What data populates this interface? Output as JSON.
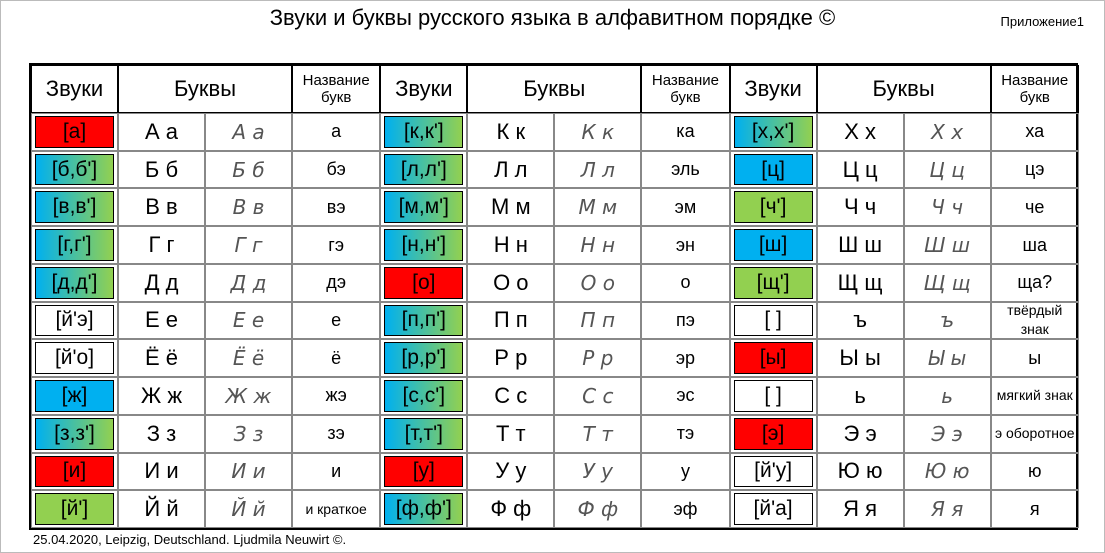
{
  "header": {
    "title": "Звуки и буквы русского языка в алфавитном порядке ©",
    "appendix": "Приложение1"
  },
  "table": {
    "columns": [
      "Звуки",
      "Буквы",
      "Название букв"
    ],
    "groups": [
      [
        {
          "sound": "[а]",
          "color": "#ff0000",
          "print": "А а",
          "italic": "А а",
          "name": "а"
        },
        {
          "sound": "[б,б']",
          "color": [
            "#00b0f0",
            "#92d050"
          ],
          "print": "Б б",
          "italic": "Б б",
          "name": "бэ"
        },
        {
          "sound": "[в,в']",
          "color": [
            "#00b0f0",
            "#92d050"
          ],
          "print": "В в",
          "italic": "В в",
          "name": "вэ"
        },
        {
          "sound": "[г,г']",
          "color": [
            "#00b0f0",
            "#92d050"
          ],
          "print": "Г г",
          "italic": "Г г",
          "name": "гэ"
        },
        {
          "sound": "[д,д']",
          "color": [
            "#00b0f0",
            "#92d050"
          ],
          "print": "Д д",
          "italic": "Д д",
          "name": "дэ"
        },
        {
          "sound": "[й'э]",
          "color": "#ffffff",
          "print": "Е е",
          "italic": "Е е",
          "name": "е"
        },
        {
          "sound": "[й'о]",
          "color": "#ffffff",
          "print": "Ё ё",
          "italic": "Ё ё",
          "name": "ё"
        },
        {
          "sound": "[ж]",
          "color": "#00b0f0",
          "print": "Ж ж",
          "italic": "Ж ж",
          "name": "жэ"
        },
        {
          "sound": "[з,з']",
          "color": [
            "#00b0f0",
            "#92d050"
          ],
          "print": "З з",
          "italic": "З з",
          "name": "зэ"
        },
        {
          "sound": "[и]",
          "color": "#ff0000",
          "print": "И и",
          "italic": "И и",
          "name": "и"
        },
        {
          "sound": "[й']",
          "color": "#92d050",
          "print": "Й й",
          "italic": "Й й",
          "name": "и краткое"
        }
      ],
      [
        {
          "sound": "[к,к']",
          "color": [
            "#00b0f0",
            "#92d050"
          ],
          "print": "К к",
          "italic": "К к",
          "name": "ка"
        },
        {
          "sound": "[л,л']",
          "color": [
            "#00b0f0",
            "#92d050"
          ],
          "print": "Л л",
          "italic": "Л л",
          "name": "эль"
        },
        {
          "sound": "[м,м']",
          "color": [
            "#00b0f0",
            "#92d050"
          ],
          "print": "М м",
          "italic": "М м",
          "name": "эм"
        },
        {
          "sound": "[н,н']",
          "color": [
            "#00b0f0",
            "#92d050"
          ],
          "print": "Н н",
          "italic": "Н н",
          "name": "эн"
        },
        {
          "sound": "[о]",
          "color": "#ff0000",
          "print": "О о",
          "italic": "О о",
          "name": "о"
        },
        {
          "sound": "[п,п']",
          "color": [
            "#00b0f0",
            "#92d050"
          ],
          "print": "П п",
          "italic": "П п",
          "name": "пэ"
        },
        {
          "sound": "[р,р']",
          "color": [
            "#00b0f0",
            "#92d050"
          ],
          "print": "Р р",
          "italic": "Р р",
          "name": "эр"
        },
        {
          "sound": "[с,с']",
          "color": [
            "#00b0f0",
            "#92d050"
          ],
          "print": "С с",
          "italic": "С с",
          "name": "эс"
        },
        {
          "sound": "[т,т']",
          "color": [
            "#00b0f0",
            "#92d050"
          ],
          "print": "Т т",
          "italic": "Т т",
          "name": "тэ"
        },
        {
          "sound": "[у]",
          "color": "#ff0000",
          "print": "У у",
          "italic": "У у",
          "name": "у"
        },
        {
          "sound": "[ф,ф']",
          "color": [
            "#00b0f0",
            "#92d050"
          ],
          "print": "Ф ф",
          "italic": "Ф ф",
          "name": "эф"
        }
      ],
      [
        {
          "sound": "[х,х']",
          "color": [
            "#00b0f0",
            "#92d050"
          ],
          "print": "Х х",
          "italic": "Х х",
          "name": "ха"
        },
        {
          "sound": "[ц]",
          "color": "#00b0f0",
          "print": "Ц ц",
          "italic": "Ц ц",
          "name": "цэ"
        },
        {
          "sound": "[ч']",
          "color": "#92d050",
          "print": "Ч ч",
          "italic": "Ч ч",
          "name": "че"
        },
        {
          "sound": "[ш]",
          "color": "#00b0f0",
          "print": "Ш ш",
          "italic": "Ш ш",
          "name": "ша"
        },
        {
          "sound": "[щ']",
          "color": "#92d050",
          "print": "Щ щ",
          "italic": "Щ щ",
          "name": "ща?"
        },
        {
          "sound": "[ ]",
          "color": "#ffffff",
          "print": "ъ",
          "italic": "ъ",
          "name": "твёрдый знак"
        },
        {
          "sound": "[ы]",
          "color": "#ff0000",
          "print": "Ы ы",
          "italic": "Ы ы",
          "name": "ы"
        },
        {
          "sound": "[ ]",
          "color": "#ffffff",
          "print": "ь",
          "italic": "ь",
          "name": "мягкий знак"
        },
        {
          "sound": "[э]",
          "color": "#ff0000",
          "print": "Э э",
          "italic": "Э э",
          "name": "э оборотное"
        },
        {
          "sound": "[й'у]",
          "color": "#ffffff",
          "print": "Ю ю",
          "italic": "Ю ю",
          "name": "ю"
        },
        {
          "sound": "[й'а]",
          "color": "#ffffff",
          "print": "Я я",
          "italic": "Я я",
          "name": "я"
        }
      ]
    ]
  },
  "footer": "25.04.2020, Leipzig, Deutschland.  Ljudmila Neuwirt ©."
}
